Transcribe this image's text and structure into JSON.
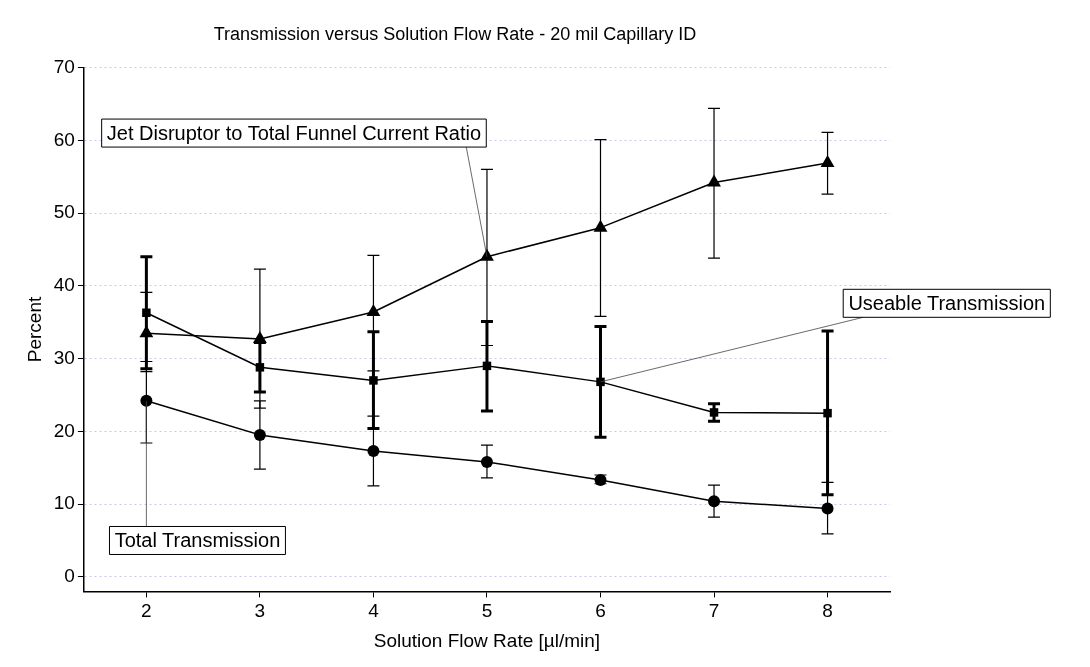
{
  "chart_data": {
    "type": "line",
    "title": "Transmission versus Solution Flow Rate - 20 mil Capillary ID",
    "xlabel": "Solution Flow Rate [µl/min]",
    "ylabel": "Percent",
    "x": [
      2,
      3,
      4,
      5,
      6,
      7,
      8
    ],
    "series": [
      {
        "color": "#000000",
        "marker": "triangle",
        "values": [
          33.5,
          32.7,
          36.4,
          44,
          48,
          54.2,
          56.9
        ],
        "errors": [
          [
            28.2,
            39.1
          ],
          [
            23.2,
            42.3
          ],
          [
            28.3,
            44.2
          ],
          [
            31.8,
            56
          ],
          [
            35.8,
            60.1
          ],
          [
            43.8,
            64.4
          ],
          [
            52.6,
            61.1
          ]
        ]
      },
      {
        "color": "#000000",
        "marker": "square",
        "values": [
          36.3,
          28.8,
          27,
          29,
          26.8,
          22.6,
          22.5
        ],
        "errors": [
          [
            28.6,
            44
          ],
          [
            25.4,
            32.2
          ],
          [
            20.4,
            33.7
          ],
          [
            22.8,
            35.1
          ],
          [
            19.2,
            34.4
          ],
          [
            21.4,
            23.8
          ],
          [
            11.3,
            33.8
          ]
        ]
      },
      {
        "color": "#000000",
        "marker": "circle",
        "values": [
          24.2,
          19.5,
          17.3,
          15.8,
          13.3,
          10.4,
          9.4
        ],
        "errors": [
          [
            18.4,
            29.6
          ],
          [
            14.8,
            24.2
          ],
          [
            12.5,
            22.1
          ],
          [
            13.6,
            18.1
          ],
          [
            12.8,
            14
          ],
          [
            8.2,
            12.6
          ],
          [
            5.9,
            13
          ]
        ]
      }
    ],
    "xlim": [
      1.45,
      8.55
    ],
    "xticks": [
      2,
      3,
      4,
      5,
      6,
      7,
      8
    ],
    "ylim": [
      -2,
      70
    ],
    "yticks": [
      0,
      10,
      20,
      30,
      40,
      50,
      60,
      70
    ],
    "grid": "y",
    "legend": false,
    "annotations": [
      {
        "text": "Jet Disruptor to Total Funnel Current Ratio",
        "x": 5,
        "y": 44
      },
      {
        "text": "Useable Transmission",
        "x": 6,
        "y": 26.8
      },
      {
        "text": "Total Transmission",
        "x": 2,
        "y": 24.2
      }
    ]
  }
}
